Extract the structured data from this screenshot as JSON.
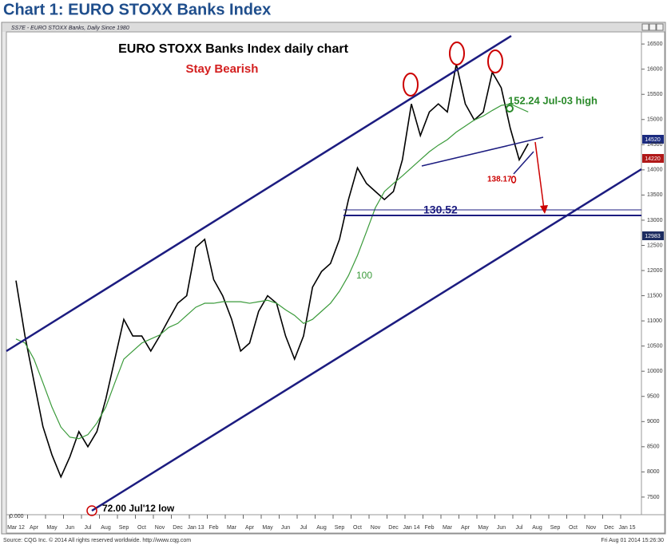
{
  "page_title": "Chart 1: EURO STOXX Banks Index",
  "window_title": "SS7E - EURO STOXX Banks, Daily Since 1980",
  "chart_data": {
    "type": "line",
    "title": "EURO STOXX Banks Index daily chart",
    "subtitle": "Stay Bearish",
    "annotations": [
      "152.24 Jul-03 high",
      "138.17",
      "130.52",
      "72.00 Jul'12 low"
    ],
    "categories": [
      "Mar 12",
      null,
      "Apr",
      null,
      "May",
      null,
      "Jun",
      null,
      "Jul",
      null,
      "Aug",
      null,
      "Sep",
      null,
      "Oct",
      null,
      "Nov",
      null,
      "Dec",
      null,
      "Jan 13",
      null,
      "Feb",
      null,
      "Mar",
      null,
      "Apr",
      null,
      "May",
      null,
      "Jun",
      null,
      "Jul",
      null,
      "Aug",
      null,
      "Sep",
      null,
      "Oct",
      null,
      "Nov",
      null,
      "Dec",
      null,
      "Jan 14",
      null,
      "Feb",
      null,
      "Mar",
      null,
      "Apr",
      null,
      "May",
      null,
      "Jun",
      null,
      "Jul",
      null,
      "Aug",
      null,
      "Sep",
      null,
      "Oct",
      null,
      "Nov",
      null,
      "Dec",
      null,
      "Jan 15"
    ],
    "series": [
      {
        "color": "#000000",
        "values": [
          11800,
          10700,
          9800,
          8900,
          8340,
          7900,
          8300,
          8800,
          8500,
          8800,
          9450,
          10240,
          11030,
          10700,
          10700,
          10400,
          10700,
          11030,
          11350,
          11500,
          12460,
          12620,
          11820,
          11500,
          11030,
          10400,
          10560,
          11190,
          11500,
          11350,
          10700,
          10240,
          10700,
          11670,
          11980,
          12140,
          12620,
          13410,
          14040,
          13730,
          13570,
          13410,
          13570,
          14200,
          15310,
          14680,
          15150,
          15310,
          15150,
          16100,
          15310,
          14990,
          15150,
          15940,
          15630,
          14830,
          14200,
          14520,
          null,
          null,
          null,
          null,
          null,
          null,
          null,
          null,
          null,
          null,
          null
        ]
      },
      {
        "name": "100",
        "color": "#3a9a3a",
        "values": [
          10640,
          10560,
          10240,
          9770,
          9290,
          8890,
          8690,
          8660,
          8740,
          8970,
          9290,
          9770,
          10240,
          10400,
          10560,
          10640,
          10720,
          10870,
          10950,
          11110,
          11270,
          11350,
          11350,
          11380,
          11380,
          11380,
          11350,
          11380,
          11410,
          11350,
          11220,
          11110,
          10950,
          11030,
          11190,
          11350,
          11590,
          11900,
          12300,
          12770,
          13250,
          13570,
          13730,
          13880,
          14040,
          14200,
          14360,
          14490,
          14600,
          14750,
          14870,
          14990,
          15070,
          15180,
          15280,
          15310,
          15230,
          15150,
          null,
          null,
          null,
          null,
          null,
          null,
          null,
          null,
          null,
          null,
          null
        ]
      }
    ],
    "ylim": [
      7150,
      16740
    ],
    "yticks": [
      7500,
      8000,
      8500,
      9000,
      9500,
      10000,
      10500,
      11000,
      11500,
      12000,
      12500,
      13000,
      13500,
      14000,
      14500,
      15000,
      15500,
      16000,
      16500
    ],
    "price_labels": [
      "14520",
      "14220",
      "12983"
    ],
    "zero_label": "0.000"
  },
  "footer": {
    "source": "Source: CQG Inc. © 2014 All rights reserved worldwide. http://www.cqg.com",
    "timestamp": "Fri Aug 01 2014 15:26:30"
  }
}
